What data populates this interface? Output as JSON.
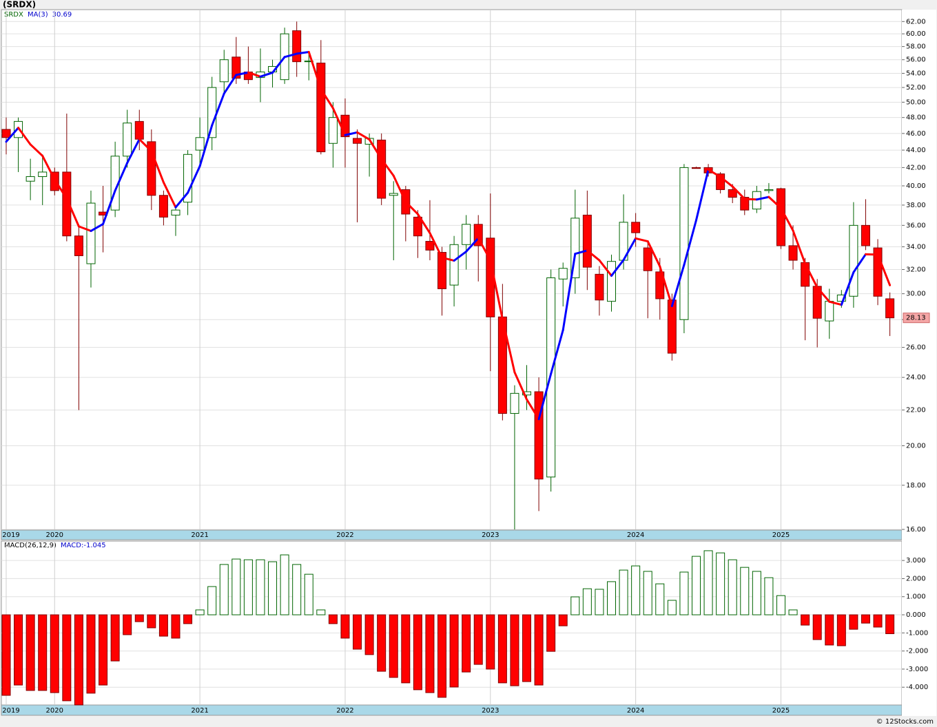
{
  "title": "(SRDX)",
  "footer": "© 12Stocks.com",
  "chart_data": [
    {
      "type": "candlestick",
      "name": "SRDX",
      "log_scale": true,
      "grid": true,
      "up_color": "#006400",
      "down_color": "#ff0000",
      "categories": [
        "2019",
        null,
        null,
        null,
        "2020",
        null,
        null,
        null,
        null,
        null,
        null,
        null,
        null,
        null,
        null,
        null,
        "2021",
        null,
        null,
        null,
        null,
        null,
        null,
        null,
        null,
        null,
        null,
        null,
        "2022",
        null,
        null,
        null,
        null,
        null,
        null,
        null,
        null,
        null,
        null,
        null,
        "2023",
        null,
        null,
        null,
        null,
        null,
        null,
        null,
        null,
        null,
        null,
        null,
        "2024",
        null,
        null,
        null,
        null,
        null,
        null,
        null,
        null,
        null,
        null,
        null,
        "2025",
        null,
        null,
        null,
        null,
        null,
        null,
        null,
        null,
        null
      ],
      "open": [
        46.5,
        45.5,
        40.5,
        41,
        41.5,
        41.5,
        35,
        32.5,
        37.3,
        37.5,
        43.3,
        47.5,
        45,
        39,
        37,
        38.3,
        44,
        45.5,
        52.8,
        56.4,
        54.2,
        53.4,
        54.2,
        53.1,
        60.5,
        55.7,
        55.5,
        44.8,
        48.3,
        45.4,
        44.7,
        45.2,
        39,
        39.6,
        36.8,
        34.5,
        33.5,
        30.7,
        34.2,
        36.1,
        34.8,
        28.2,
        21.8,
        22.9,
        23.1,
        18.4,
        31.2,
        31.3,
        37,
        31.6,
        29.4,
        32.8,
        36.3,
        33.9,
        31.8,
        29.5,
        28,
        42,
        42,
        41.3,
        39.6,
        38.8,
        37.6,
        39.5,
        39.7,
        34.1,
        32.6,
        30.6,
        27.9,
        29.4,
        29.8,
        36,
        33.9,
        29.6
      ],
      "high": [
        48,
        48,
        43,
        43.5,
        42,
        48.5,
        36,
        39.5,
        40,
        45,
        49,
        49,
        46.5,
        39.5,
        38,
        44,
        48,
        53.5,
        57.5,
        59.5,
        58,
        57.7,
        56,
        61,
        62,
        57,
        59,
        50,
        50.5,
        46.5,
        46,
        46,
        40.5,
        40,
        37.5,
        38.5,
        34,
        35,
        37,
        37,
        39.2,
        30.8,
        23.5,
        24.8,
        24,
        32,
        32.6,
        39.6,
        39.5,
        32.3,
        33.3,
        39.1,
        37.2,
        34.5,
        33,
        30,
        42.4,
        42.1,
        42.4,
        41.5,
        40.2,
        39.6,
        40,
        40.3,
        39.8,
        36,
        33,
        31.2,
        30.4,
        30.3,
        38.3,
        38.6,
        34.7,
        30.1
      ],
      "low": [
        43.5,
        41.5,
        38.5,
        38,
        39,
        34.5,
        22,
        30.5,
        33.5,
        36.8,
        42,
        44,
        37.5,
        36,
        35,
        37,
        42,
        44,
        51,
        52.5,
        52.5,
        50,
        52,
        52.5,
        53.5,
        53,
        43.5,
        42,
        42,
        36.3,
        41,
        38,
        32.8,
        34.5,
        33,
        32.8,
        28.3,
        29,
        32,
        31,
        24.4,
        21.4,
        16,
        22,
        16.8,
        17.7,
        29,
        30,
        30.3,
        28.3,
        28.6,
        32,
        34,
        28.1,
        28,
        25.1,
        27,
        41.9,
        41,
        39.2,
        38.2,
        37,
        37.2,
        39.2,
        33.8,
        32,
        26.5,
        26,
        26.6,
        28.9,
        28.9,
        33.7,
        29.1,
        26.8
      ],
      "close": [
        45.5,
        47.5,
        41,
        41.5,
        39.5,
        35,
        33.2,
        38.2,
        37,
        43.3,
        47.3,
        45.3,
        39,
        36.8,
        37.5,
        43.5,
        45.5,
        52,
        56,
        53.3,
        53.1,
        54.2,
        55,
        60,
        55.7,
        55.8,
        43.8,
        48,
        45.6,
        44.8,
        45.4,
        38.7,
        39.2,
        37.1,
        35,
        33.7,
        30.4,
        34.2,
        36.1,
        34.1,
        28.2,
        21.8,
        23,
        23.1,
        18.3,
        31.3,
        32.1,
        36.7,
        32.2,
        29.5,
        32.7,
        36.3,
        35.3,
        31.9,
        29.6,
        25.6,
        42,
        41.9,
        41.4,
        39.6,
        38.8,
        37.5,
        39.4,
        39.6,
        34.1,
        32.8,
        30.6,
        28.1,
        29.4,
        29.9,
        36,
        34.1,
        29.8,
        28.13
      ],
      "ma": {
        "name": "MA(3)",
        "up_color": "#0000ff",
        "down_color": "#ff0000",
        "values": [
          45,
          46.7,
          44.67,
          43.33,
          40.67,
          38.67,
          35.9,
          35.47,
          36.13,
          39.5,
          42.53,
          45.3,
          43.87,
          40.37,
          37.77,
          39.27,
          42.17,
          47,
          51.17,
          53.77,
          54.13,
          53.53,
          54.1,
          56.4,
          56.9,
          57.17,
          51.77,
          49.2,
          45.8,
          46.13,
          45.27,
          42.97,
          41.1,
          38.33,
          37.1,
          35.27,
          33.03,
          32.77,
          33.57,
          34.8,
          32.8,
          28.03,
          24.33,
          22.63,
          21.47,
          24.23,
          27.23,
          33.37,
          33.67,
          32.8,
          31.47,
          32.83,
          34.77,
          34.5,
          32.27,
          29.03,
          32.4,
          36.5,
          41.77,
          40.97,
          39.93,
          38.63,
          38.57,
          38.83,
          37.7,
          35.5,
          32.5,
          30.5,
          29.37,
          29.13,
          31.77,
          33.33,
          33.3,
          30.69
        ]
      },
      "ylim": [
        16,
        64
      ],
      "yticks": [
        {
          "value": 16,
          "label": "16.00"
        },
        {
          "value": 18,
          "label": "18.00"
        },
        {
          "value": 20,
          "label": "20.00"
        },
        {
          "value": 22,
          "label": "22.00"
        },
        {
          "value": 24,
          "label": "24.00"
        },
        {
          "value": 26,
          "label": "26.00"
        },
        {
          "value": 28,
          "label": "28.00"
        },
        {
          "value": 30,
          "label": "30.00"
        },
        {
          "value": 32,
          "label": "32.00"
        },
        {
          "value": 34,
          "label": "34.00"
        },
        {
          "value": 36,
          "label": "36.00"
        },
        {
          "value": 38,
          "label": "38.00"
        },
        {
          "value": 40,
          "label": "40.00"
        },
        {
          "value": 42,
          "label": "42.00"
        },
        {
          "value": 44,
          "label": "44.00"
        },
        {
          "value": 46,
          "label": "46.00"
        },
        {
          "value": 48,
          "label": "48.00"
        },
        {
          "value": 50,
          "label": "50.00"
        },
        {
          "value": 52,
          "label": "52.00"
        },
        {
          "value": 54,
          "label": "54.00"
        },
        {
          "value": 56,
          "label": "56.00"
        },
        {
          "value": 58,
          "label": "58.00"
        },
        {
          "value": 60,
          "label": "60.00"
        },
        {
          "value": 62,
          "label": "62.00"
        }
      ]
    },
    {
      "type": "bar",
      "name": "MACD(26,12,9)",
      "up_color": "#006400",
      "down_color": "#ff0000",
      "grid": true,
      "series": [
        {
          "name": "MACD:",
          "values": [
            -4.45,
            -3.88,
            -4.18,
            -4.18,
            -4.3,
            -4.75,
            -4.98,
            -4.33,
            -3.88,
            -2.55,
            -1.1,
            -0.38,
            -0.72,
            -1.18,
            -1.29,
            -0.49,
            0.27,
            1.56,
            2.78,
            3.08,
            3.04,
            3.04,
            2.93,
            3.31,
            2.78,
            2.24,
            0.27,
            -0.49,
            -1.29,
            -1.9,
            -2.2,
            -3.12,
            -3.46,
            -3.76,
            -4.14,
            -4.3,
            -4.56,
            -3.99,
            -3.16,
            -2.74,
            -3,
            -3.76,
            -3.92,
            -3.69,
            -3.88,
            -2.02,
            -0.61,
            0.99,
            1.44,
            1.41,
            1.83,
            2.47,
            2.7,
            2.4,
            1.71,
            0.8,
            2.36,
            3.23,
            3.54,
            3.42,
            3.04,
            2.62,
            2.4,
            2.05,
            1.06,
            0.27,
            -0.57,
            -1.37,
            -1.67,
            -1.71,
            -0.8,
            -0.46,
            -0.68,
            -1.045
          ]
        }
      ],
      "ylim": [
        -5,
        4.07
      ],
      "yticks": [
        {
          "value": 3,
          "label": "3.000"
        },
        {
          "value": 2,
          "label": "2.000"
        },
        {
          "value": 1,
          "label": "1.000"
        },
        {
          "value": 0,
          "label": "0.000"
        },
        {
          "value": -1,
          "label": "-1.000"
        },
        {
          "value": -2,
          "label": "-2.000"
        },
        {
          "value": -3,
          "label": "-3.000"
        },
        {
          "value": -4,
          "label": "-4.000"
        }
      ]
    }
  ]
}
